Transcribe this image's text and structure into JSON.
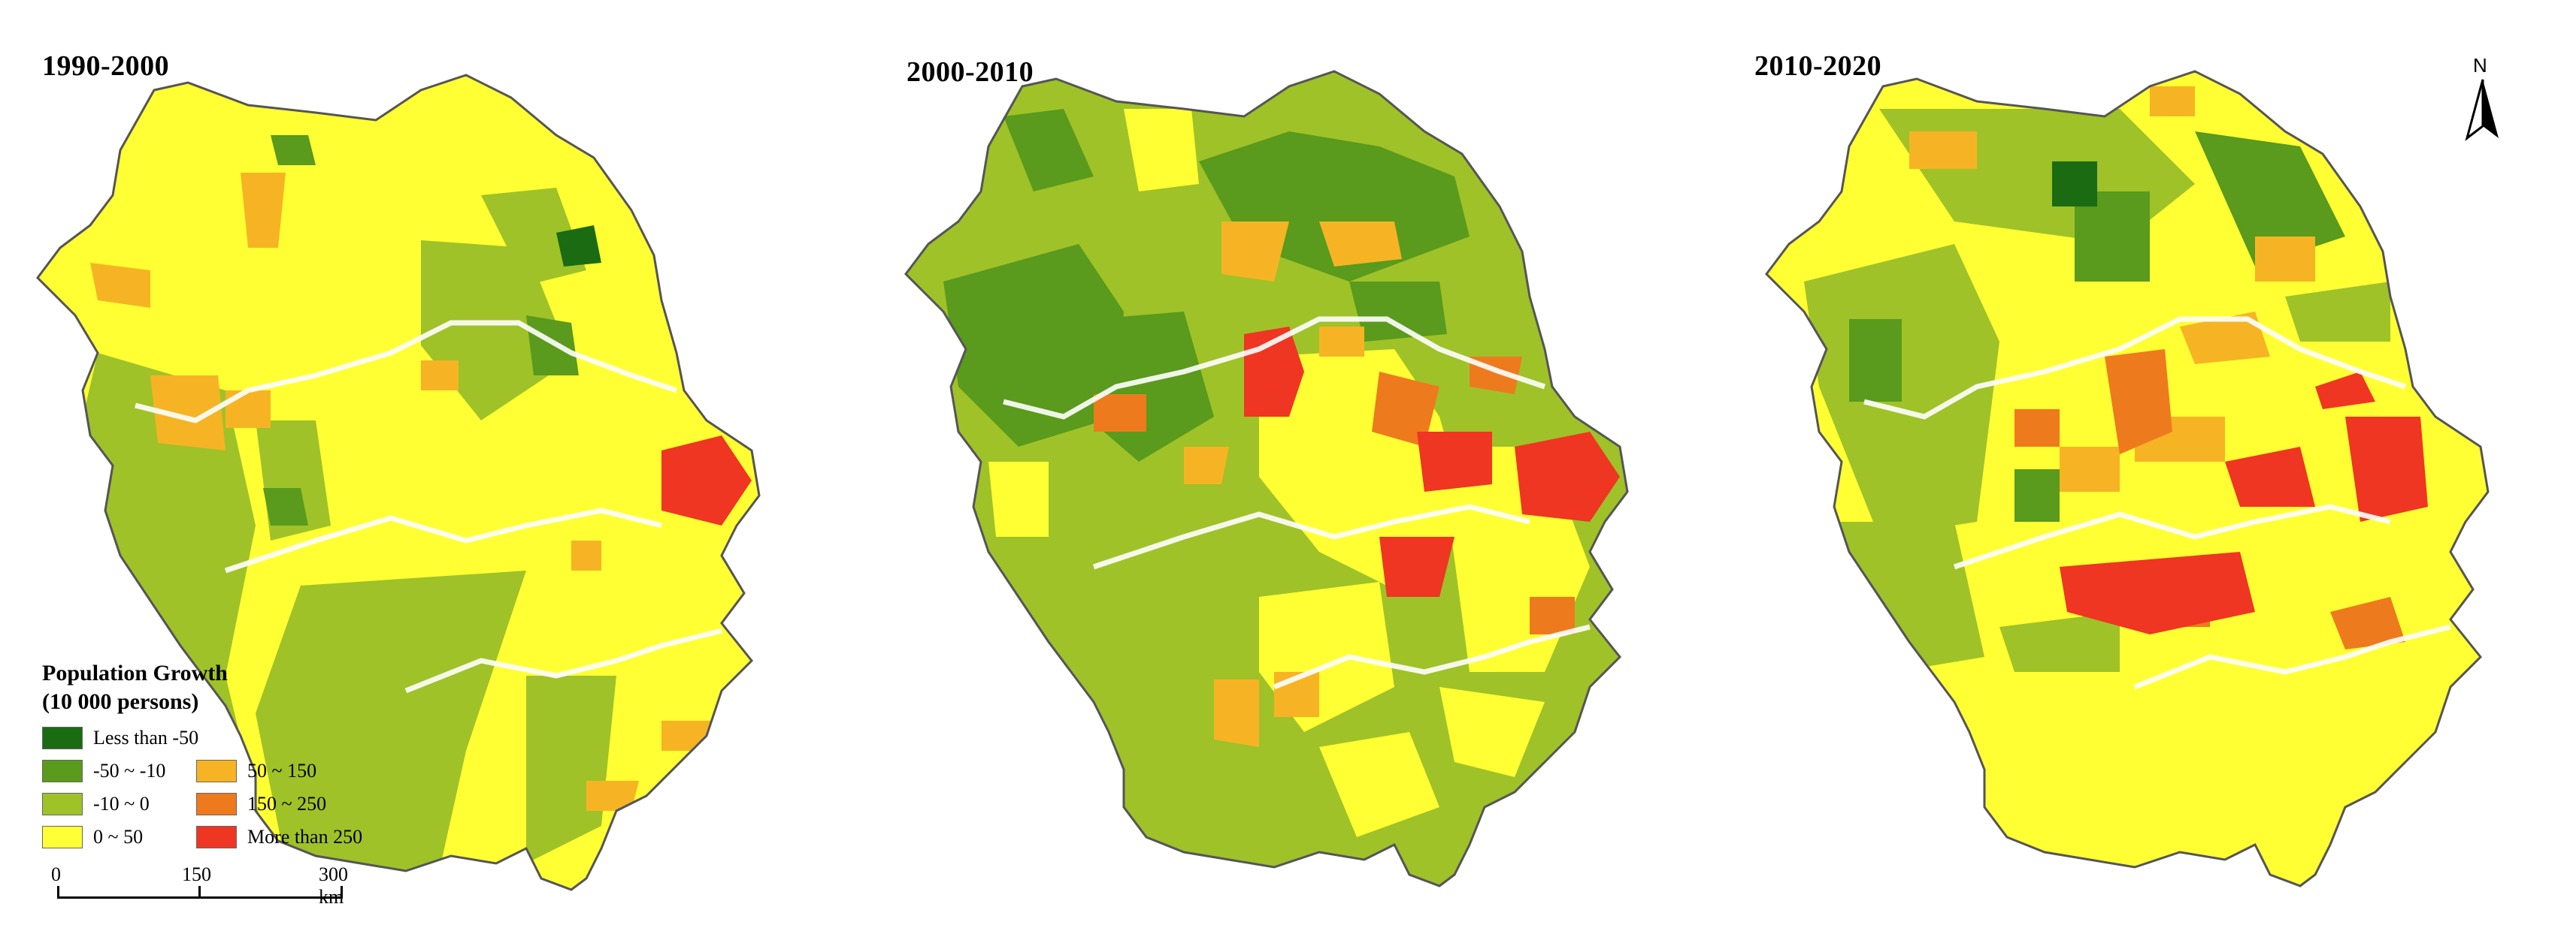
{
  "panels": [
    {
      "title": "1990-2000"
    },
    {
      "title": "2000-2010"
    },
    {
      "title": "2010-2020"
    }
  ],
  "legend": {
    "title_line1": "Population Growth",
    "title_line2": "(10 000 persons)",
    "classes": [
      {
        "label": "Less than -50",
        "color": "#1a6b12"
      },
      {
        "label": "-50 ~ -10",
        "color": "#5a9a1c"
      },
      {
        "label": "-10 ~ 0",
        "color": "#9fc228"
      },
      {
        "label": "0 ~ 50",
        "color": "#ffff33"
      },
      {
        "label": "50 ~ 150",
        "color": "#f6b424"
      },
      {
        "label": "150 ~ 250",
        "color": "#ee7a1e"
      },
      {
        "label": "More than 250",
        "color": "#ee3622"
      }
    ]
  },
  "scalebar": {
    "labels": [
      "0",
      "150",
      "300 km"
    ]
  },
  "north_arrow": {
    "label": "N",
    "icon": "north-arrow-icon"
  }
}
